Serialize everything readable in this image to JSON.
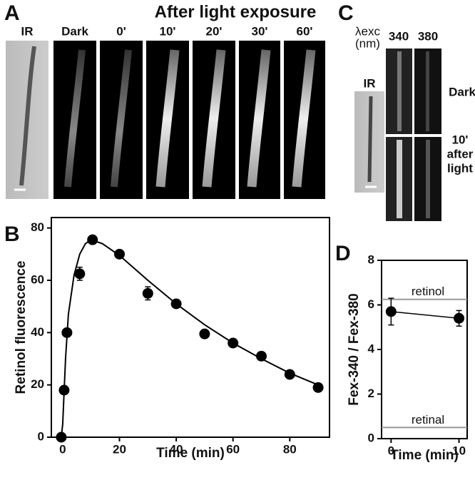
{
  "panel_a": {
    "label": "A",
    "title": "After light exposure",
    "images": [
      "IR",
      "Dark",
      "0'",
      "10'",
      "20'",
      "30'",
      "60'"
    ]
  },
  "panel_c": {
    "label": "C",
    "lambda": "λexc",
    "unit": "(nm)",
    "columns": [
      "340",
      "380"
    ],
    "ir": "IR",
    "rows": [
      "Dark",
      "10'",
      "after",
      "light"
    ]
  },
  "panel_b": {
    "label": "B"
  },
  "panel_d": {
    "label": "D"
  },
  "chart_data": [
    {
      "type": "scatter",
      "xlabel": "Time (min)",
      "ylabel": "Retinol fluorescence",
      "x": [
        -0.5,
        0.5,
        1.5,
        6,
        10.5,
        20,
        30,
        40,
        50,
        60,
        70,
        80,
        90
      ],
      "series": [
        {
          "color": "#000000",
          "values": [
            0,
            18,
            40,
            62.5,
            75.5,
            70,
            55,
            51,
            39.5,
            36,
            31,
            24,
            19
          ],
          "errors": [
            null,
            null,
            null,
            2.5,
            null,
            null,
            2.5,
            null,
            null,
            null,
            null,
            null,
            null
          ]
        }
      ],
      "fit_curve": {
        "x": [
          -0.5,
          0,
          1,
          2,
          4,
          6,
          8,
          10,
          14,
          20,
          30,
          40,
          50,
          60,
          70,
          80,
          90
        ],
        "values": [
          0,
          5,
          30,
          47,
          62,
          70,
          74,
          75.5,
          74,
          69.5,
          60,
          51,
          43,
          36,
          30,
          24.5,
          20
        ]
      },
      "xlim": [
        -4,
        94
      ],
      "ylim": [
        0,
        84
      ],
      "xticks": [
        0,
        20,
        40,
        60,
        80
      ],
      "yticks": [
        0,
        20,
        40,
        60,
        80
      ]
    },
    {
      "type": "line",
      "xlabel": "Time (min)",
      "ylabel": "Fex-340 / Fex-380",
      "x": [
        0,
        10
      ],
      "series": [
        {
          "color": "#000000",
          "values": [
            5.7,
            5.4
          ],
          "errors": [
            0.6,
            0.35
          ]
        }
      ],
      "hlines": [
        {
          "label": "retinol",
          "value": 6.25
        },
        {
          "label": "retinal",
          "value": 0.5
        }
      ],
      "xlim": [
        -1.4,
        11.2
      ],
      "ylim": [
        0,
        8
      ],
      "xticks": [
        0,
        10
      ],
      "yticks": [
        0,
        2,
        4,
        6,
        8
      ]
    }
  ]
}
